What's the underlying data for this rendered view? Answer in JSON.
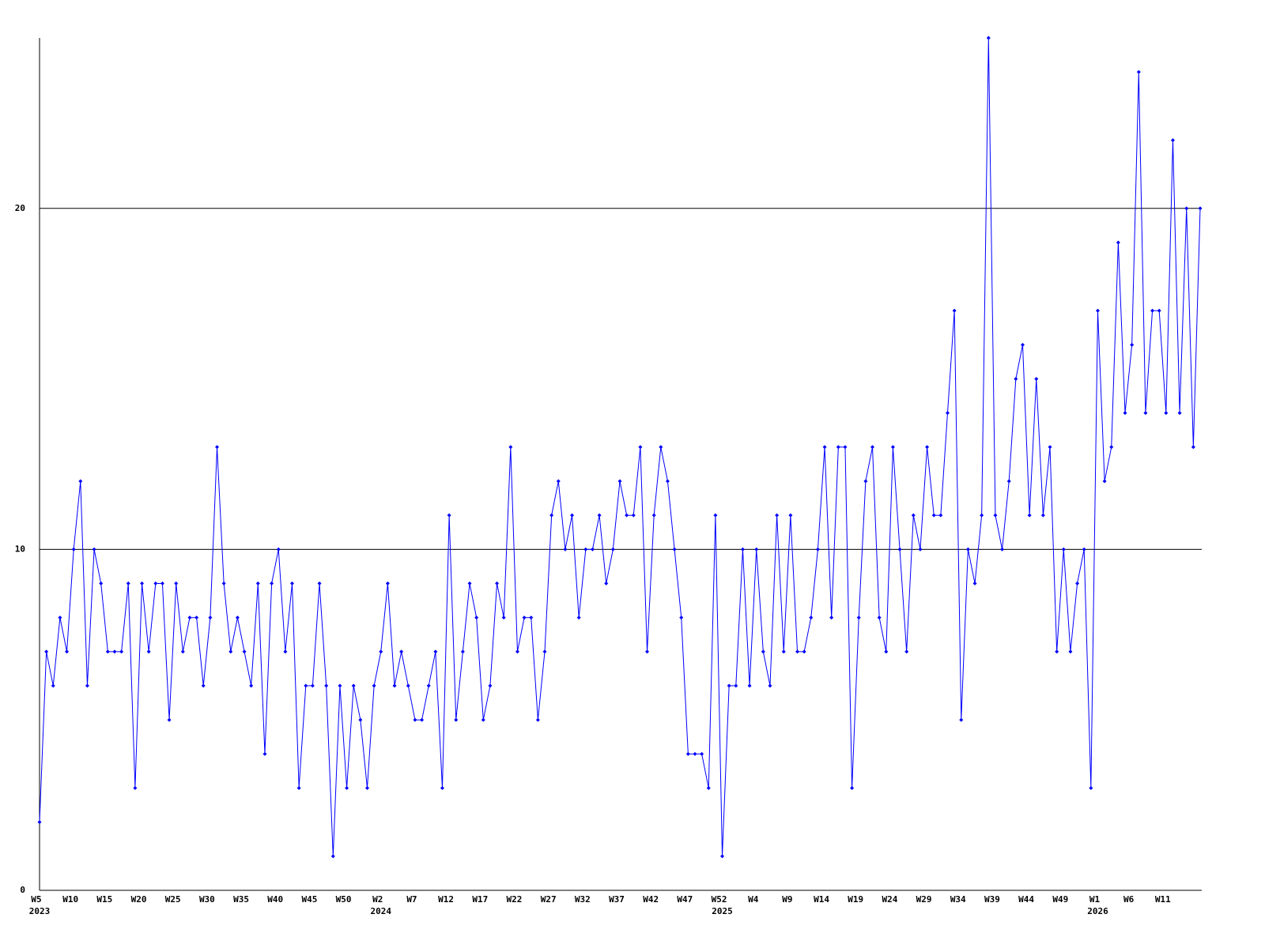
{
  "chart_data": {
    "type": "line",
    "color": "#0000ff",
    "grid": true,
    "ylim": [
      0,
      25
    ],
    "yticks": [
      0,
      10,
      20
    ],
    "categories": [
      "W5",
      null,
      null,
      null,
      null,
      "W10",
      null,
      null,
      null,
      null,
      "W15",
      null,
      null,
      null,
      null,
      "W20",
      null,
      null,
      null,
      null,
      "W25",
      null,
      null,
      null,
      null,
      "W30",
      null,
      null,
      null,
      null,
      "W35",
      null,
      null,
      null,
      null,
      "W40",
      null,
      null,
      null,
      null,
      "W45",
      null,
      null,
      null,
      null,
      "W50",
      null,
      null,
      null,
      null,
      "W2",
      null,
      null,
      null,
      null,
      "W7",
      null,
      null,
      null,
      null,
      "W12",
      null,
      null,
      null,
      null,
      "W17",
      null,
      null,
      null,
      null,
      "W22",
      null,
      null,
      null,
      null,
      "W27",
      null,
      null,
      null,
      null,
      "W32",
      null,
      null,
      null,
      null,
      "W37",
      null,
      null,
      null,
      null,
      "W42",
      null,
      null,
      null,
      null,
      "W47",
      null,
      null,
      null,
      null,
      "W52",
      null,
      null,
      null,
      null,
      "W4",
      null,
      null,
      null,
      null,
      "W9",
      null,
      null,
      null,
      null,
      "W14",
      null,
      null,
      null,
      null,
      "W19",
      null,
      null,
      null,
      null,
      "W24",
      null,
      null,
      null,
      null,
      "W29",
      null,
      null,
      null,
      null,
      "W34",
      null,
      null,
      null,
      null,
      "W39",
      null,
      null,
      null,
      null,
      "W44",
      null,
      null,
      null,
      null,
      "W49",
      null,
      null,
      null,
      null,
      "W1",
      null,
      null,
      null,
      null,
      "W6",
      null,
      null,
      null,
      null,
      "W11",
      null,
      null,
      null,
      null,
      null
    ],
    "category_years": [
      "2023",
      null,
      null,
      null,
      null,
      null,
      null,
      null,
      null,
      null,
      null,
      null,
      null,
      null,
      null,
      null,
      null,
      null,
      null,
      null,
      null,
      null,
      null,
      null,
      null,
      null,
      null,
      null,
      null,
      null,
      null,
      null,
      null,
      null,
      null,
      null,
      null,
      null,
      null,
      null,
      null,
      null,
      null,
      null,
      null,
      null,
      null,
      null,
      null,
      null,
      "2024",
      null,
      null,
      null,
      null,
      null,
      null,
      null,
      null,
      null,
      null,
      null,
      null,
      null,
      null,
      null,
      null,
      null,
      null,
      null,
      null,
      null,
      null,
      null,
      null,
      null,
      null,
      null,
      null,
      null,
      null,
      null,
      null,
      null,
      null,
      null,
      null,
      null,
      null,
      null,
      null,
      null,
      null,
      null,
      null,
      null,
      null,
      null,
      null,
      null,
      "2025",
      null,
      null,
      null,
      null,
      null,
      null,
      null,
      null,
      null,
      null,
      null,
      null,
      null,
      null,
      null,
      null,
      null,
      null,
      null,
      null,
      null,
      null,
      null,
      null,
      null,
      null,
      null,
      null,
      null,
      null,
      null,
      null,
      null,
      null,
      null,
      null,
      null,
      null,
      null,
      null,
      null,
      null,
      null,
      null,
      null,
      null,
      null,
      null,
      null,
      null,
      null,
      null,
      null,
      null,
      "2026",
      null,
      null,
      null,
      null,
      null,
      null,
      null,
      null,
      null,
      null,
      null,
      null,
      null,
      null,
      null
    ],
    "values": [
      2,
      7,
      6,
      8,
      7,
      10,
      12,
      6,
      10,
      9,
      7,
      7,
      7,
      9,
      3,
      9,
      7,
      9,
      9,
      5,
      9,
      7,
      8,
      8,
      6,
      8,
      13,
      9,
      7,
      8,
      7,
      6,
      9,
      4,
      9,
      10,
      7,
      9,
      3,
      6,
      6,
      9,
      6,
      1,
      6,
      3,
      6,
      5,
      3,
      6,
      7,
      9,
      6,
      7,
      6,
      5,
      5,
      6,
      7,
      3,
      11,
      5,
      7,
      9,
      8,
      5,
      6,
      9,
      8,
      13,
      7,
      8,
      8,
      5,
      7,
      11,
      12,
      10,
      11,
      8,
      10,
      10,
      11,
      9,
      10,
      12,
      11,
      11,
      13,
      7,
      11,
      13,
      12,
      10,
      8,
      4,
      4,
      4,
      3,
      11,
      1,
      6,
      6,
      10,
      6,
      10,
      7,
      6,
      11,
      7,
      11,
      7,
      7,
      8,
      10,
      13,
      8,
      13,
      13,
      3,
      8,
      12,
      13,
      8,
      7,
      13,
      10,
      7,
      11,
      10,
      13,
      11,
      11,
      14,
      17,
      5,
      10,
      9,
      11,
      25,
      11,
      10,
      12,
      15,
      16,
      11,
      15,
      11,
      13,
      7,
      10,
      7,
      9,
      10,
      3,
      17,
      12,
      13,
      19,
      14,
      16,
      24,
      14,
      17,
      17,
      14,
      22,
      14,
      20,
      13,
      20
    ]
  }
}
